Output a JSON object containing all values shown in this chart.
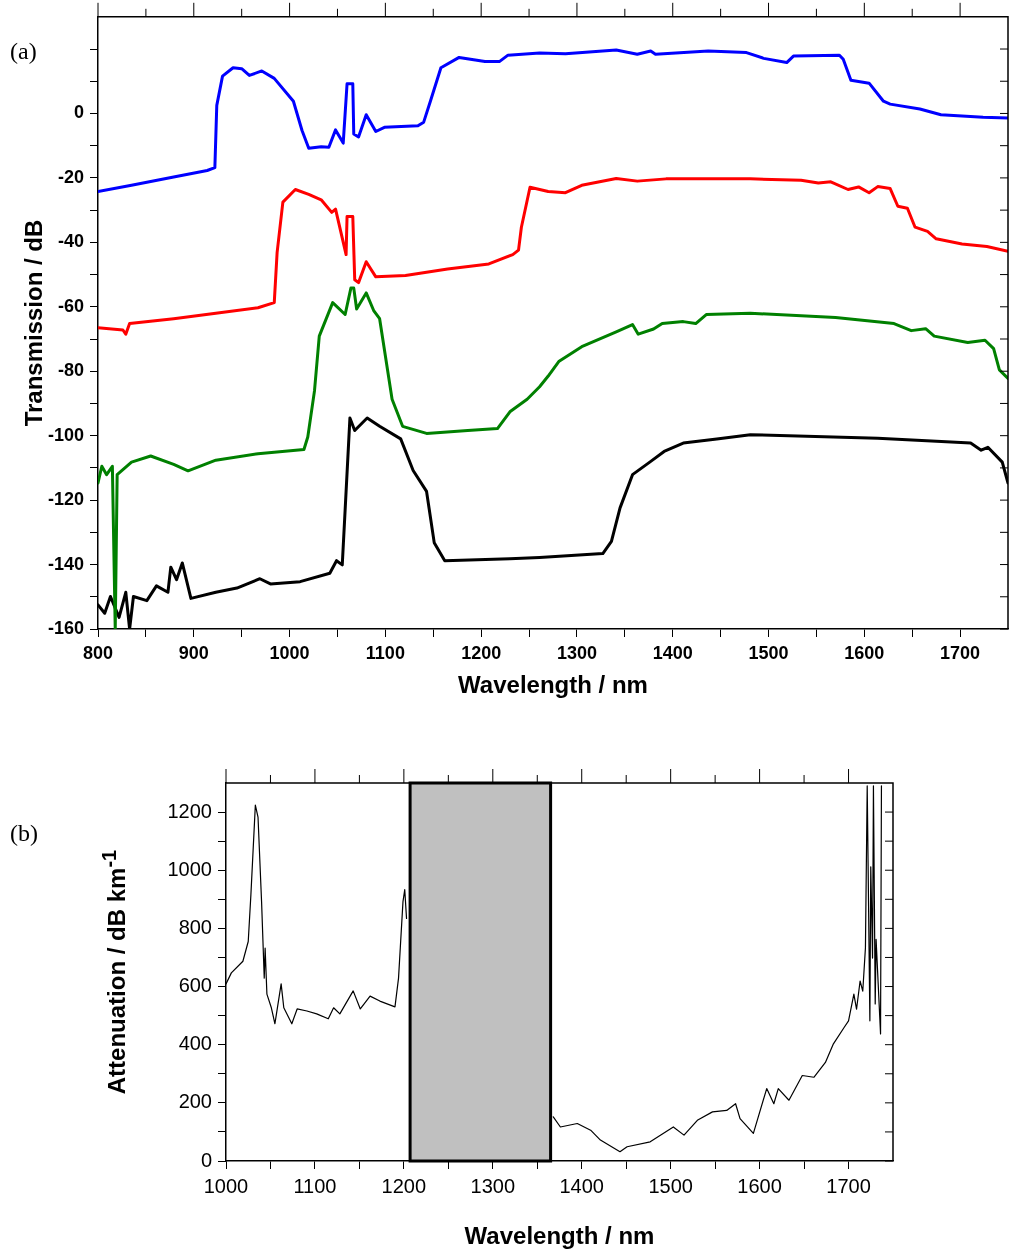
{
  "chart_data": [
    {
      "type": "line",
      "ylabel": "Transmission / dB",
      "xlabel": "Wavelength / nm",
      "annotations": [
        "(a)"
      ],
      "xlim": [
        800,
        1750
      ],
      "ylim": [
        -160,
        30
      ],
      "grid": false,
      "legend": false,
      "marker": "none",
      "line_style": "solid",
      "xticks": [
        800,
        {
          "value": 850,
          "label": null
        },
        900,
        {
          "value": 950,
          "label": null
        },
        1000,
        {
          "value": 1050,
          "label": null
        },
        1100,
        {
          "value": 1150,
          "label": null
        },
        1200,
        {
          "value": 1250,
          "label": null
        },
        1300,
        {
          "value": 1350,
          "label": null
        },
        1400,
        {
          "value": 1450,
          "label": null
        },
        1500,
        {
          "value": 1550,
          "label": null
        },
        1600,
        {
          "value": 1650,
          "label": null
        },
        1700
      ],
      "yticks": [
        -160,
        {
          "value": -150,
          "label": null
        },
        -140,
        {
          "value": -130,
          "label": null
        },
        -120,
        {
          "value": -110,
          "label": null
        },
        -100,
        {
          "value": -90,
          "label": null
        },
        -80,
        {
          "value": -70,
          "label": null
        },
        -60,
        {
          "value": -50,
          "label": null
        },
        -40,
        {
          "value": -30,
          "label": null
        },
        -20,
        {
          "value": -10,
          "label": null
        },
        0,
        {
          "value": 10,
          "label": null
        },
        {
          "value": 20,
          "label": null
        }
      ],
      "series": [
        {
          "color": "#0000ff",
          "x": [
            800,
            835,
            879,
            914,
            922,
            924,
            930,
            941,
            950,
            958,
            971,
            984,
            1004,
            1013,
            1020,
            1033,
            1041,
            1048,
            1056,
            1060,
            1066,
            1067,
            1072,
            1080,
            1090,
            1099,
            1134,
            1140,
            1147,
            1158,
            1177,
            1204,
            1219,
            1228,
            1261,
            1288,
            1341,
            1363,
            1377,
            1382,
            1437,
            1477,
            1495,
            1519,
            1526,
            1574,
            1578,
            1586,
            1605,
            1620,
            1627,
            1658,
            1680,
            1724,
            1750
          ],
          "values": [
            -24.2,
            -22.3,
            -19.7,
            -17.7,
            -16.8,
            2.5,
            11.6,
            14.2,
            13.9,
            11.8,
            13.2,
            10.9,
            3.8,
            -5.3,
            -10.8,
            -10.3,
            -10.5,
            -5.1,
            -9.2,
            9.2,
            9.2,
            -6.4,
            -7.3,
            -0.4,
            -5.6,
            -4.3,
            -3.8,
            -2.7,
            3.8,
            14.2,
            17.4,
            16.1,
            16.1,
            18.1,
            18.8,
            18.5,
            19.7,
            18.4,
            19.4,
            18.4,
            19.4,
            18.9,
            17.1,
            15.8,
            17.8,
            18.1,
            16.8,
            10.3,
            9.4,
            3.8,
            2.9,
            1.4,
            -0.4,
            -1.2,
            -1.4
          ]
        },
        {
          "color": "#ff0000",
          "x": [
            800,
            826,
            829,
            833,
            879,
            923,
            967,
            984,
            987,
            993,
            1006,
            1020,
            1033,
            1044,
            1048,
            1059,
            1060,
            1066,
            1068,
            1072,
            1080,
            1090,
            1121,
            1165,
            1208,
            1233,
            1239,
            1242,
            1251,
            1270,
            1288,
            1305,
            1341,
            1363,
            1393,
            1481,
            1534,
            1552,
            1565,
            1583,
            1594,
            1605,
            1614,
            1627,
            1635,
            1645,
            1653,
            1666,
            1675,
            1702,
            1728,
            1750
          ],
          "values": [
            -66.5,
            -67.2,
            -68.5,
            -65.2,
            -63.7,
            -62.0,
            -60.3,
            -58.7,
            -43.1,
            -27.5,
            -23.6,
            -25.1,
            -26.8,
            -30.7,
            -29.7,
            -43.8,
            -32.0,
            -32.0,
            -51.6,
            -52.5,
            -46.0,
            -50.7,
            -50.3,
            -48.3,
            -46.7,
            -43.8,
            -42.4,
            -35.3,
            -22.9,
            -24.2,
            -24.6,
            -22.3,
            -20.2,
            -21.0,
            -20.3,
            -20.3,
            -20.7,
            -21.6,
            -21.2,
            -23.6,
            -22.8,
            -24.6,
            -22.7,
            -23.3,
            -28.8,
            -29.4,
            -35.3,
            -36.6,
            -38.9,
            -40.5,
            -41.3,
            -42.8
          ]
        },
        {
          "color": "#008000",
          "x": [
            800,
            804,
            809,
            815,
            818,
            820,
            835,
            855,
            879,
            894,
            923,
            967,
            1015,
            1019,
            1026,
            1031,
            1045,
            1058,
            1064,
            1067,
            1070,
            1080,
            1088,
            1094,
            1107,
            1118,
            1143,
            1186,
            1217,
            1230,
            1248,
            1261,
            1270,
            1281,
            1305,
            1341,
            1358,
            1364,
            1380,
            1389,
            1411,
            1424,
            1435,
            1481,
            1570,
            1631,
            1649,
            1664,
            1673,
            1708,
            1726,
            1735,
            1741,
            1750
          ],
          "values": [
            -114.7,
            -109.5,
            -112.1,
            -109.5,
            -160,
            -112.1,
            -108.2,
            -106.3,
            -108.9,
            -110.9,
            -107.6,
            -105.6,
            -104.3,
            -100.4,
            -86.1,
            -69.1,
            -58.7,
            -62.4,
            -54.2,
            -54.2,
            -60.7,
            -55.7,
            -61.3,
            -63.7,
            -88.7,
            -97.1,
            -99.3,
            -98.4,
            -97.8,
            -92.6,
            -88.7,
            -84.8,
            -81.5,
            -77.0,
            -72.4,
            -67.8,
            -65.5,
            -68.5,
            -66.9,
            -65.2,
            -64.6,
            -65.2,
            -62.4,
            -62.0,
            -63.3,
            -65.2,
            -67.4,
            -66.8,
            -69.1,
            -71.1,
            -70.4,
            -73.0,
            -79.6,
            -82.2
          ]
        },
        {
          "color": "#000000",
          "x": [
            800,
            807,
            813,
            822,
            829,
            833,
            837,
            851,
            861,
            873,
            876,
            882,
            888,
            897,
            923,
            945,
            969,
            980,
            1011,
            1042,
            1049,
            1055,
            1063,
            1068,
            1081,
            1094,
            1116,
            1129,
            1143,
            1151,
            1162,
            1230,
            1261,
            1327,
            1336,
            1345,
            1358,
            1376,
            1391,
            1411,
            1446,
            1481,
            1614,
            1711,
            1722,
            1729,
            1744,
            1750
          ],
          "values": [
            -152.5,
            -155.1,
            -149.9,
            -156.4,
            -148.6,
            -160,
            -149.9,
            -151.2,
            -146.6,
            -148.6,
            -140.8,
            -144.7,
            -139.5,
            -150.5,
            -148.6,
            -147.3,
            -144.4,
            -146.0,
            -145.3,
            -142.7,
            -138.8,
            -140.1,
            -94.5,
            -98.4,
            -94.5,
            -97.1,
            -101.0,
            -110.8,
            -117.3,
            -133.2,
            -138.8,
            -138.2,
            -137.8,
            -136.6,
            -132.8,
            -122.4,
            -112.1,
            -108.2,
            -104.9,
            -102.3,
            -101.0,
            -99.7,
            -100.8,
            -102.3,
            -104.5,
            -103.6,
            -108.2,
            -114.7
          ]
        }
      ]
    },
    {
      "type": "line",
      "ylabel": "Attenuation / dB km$^{-1}$",
      "xlabel": "Wavelength / nm",
      "annotations": [
        "(b)"
      ],
      "xlim": [
        1000,
        1750
      ],
      "ylim": [
        0,
        1300
      ],
      "grid": false,
      "legend": false,
      "marker": "none",
      "line_style": "solid",
      "xticks": [
        1000,
        {
          "value": 1050,
          "label": null
        },
        1100,
        {
          "value": 1150,
          "label": null
        },
        1200,
        {
          "value": 1250,
          "label": null
        },
        1300,
        {
          "value": 1350,
          "label": null
        },
        1400,
        {
          "value": 1450,
          "label": null
        },
        1500,
        {
          "value": 1550,
          "label": null
        },
        1600,
        {
          "value": 1650,
          "label": null
        },
        1700
      ],
      "yticks": [
        0,
        {
          "value": 100,
          "label": null
        },
        200,
        {
          "value": 300,
          "label": null
        },
        400,
        {
          "value": 500,
          "label": null
        },
        600,
        {
          "value": 700,
          "label": null
        },
        800,
        {
          "value": 900,
          "label": null
        },
        1000,
        {
          "value": 1100,
          "label": null
        },
        1200
      ],
      "bands": [
        {
          "axis": "x",
          "from": 1207,
          "to": 1365,
          "color": "#c0c0c0"
        }
      ],
      "series": [
        {
          "color": "#000000",
          "x": [
            1000,
            1006,
            1019,
            1025,
            1028,
            1033,
            1036,
            1040,
            1043,
            1044,
            1046,
            1051,
            1055,
            1062,
            1065,
            1074,
            1080,
            1091,
            1102,
            1115,
            1121,
            1128,
            1143,
            1151,
            1162,
            1173,
            1190,
            1194,
            1199,
            1201,
            1203,
            1285,
            1368,
            1376,
            1395,
            1410,
            1421,
            1443,
            1451,
            1477,
            1503,
            1515,
            1530,
            1547,
            1563,
            1573,
            1578,
            1593,
            1608,
            1616,
            1621,
            1633,
            1648,
            1661,
            1674,
            1683,
            1695,
            1700,
            1706,
            1709,
            1713,
            1716,
            1719,
            1721,
            1724,
            1725,
            1727,
            1728,
            1730,
            1731,
            1736,
            1737
          ],
          "values": [
            609,
            647,
            687,
            755,
            916,
            1224,
            1183,
            892,
            629,
            732,
            574,
            527,
            472,
            609,
            527,
            472,
            523,
            516,
            506,
            489,
            527,
            506,
            585,
            523,
            567,
            550,
            530,
            629,
            892,
            933,
            834,
            null,
            152,
            117,
            129,
            106,
            72,
            32,
            49,
            66,
            117,
            89,
            140,
            169,
            174,
            197,
            146,
            95,
            249,
            197,
            249,
            209,
            294,
            288,
            339,
            403,
            459,
            482,
            574,
            522,
            619,
            584,
            733,
            1290,
            482,
            1012,
            698,
            1290,
            540,
            762,
            437,
            1290
          ]
        }
      ]
    }
  ]
}
